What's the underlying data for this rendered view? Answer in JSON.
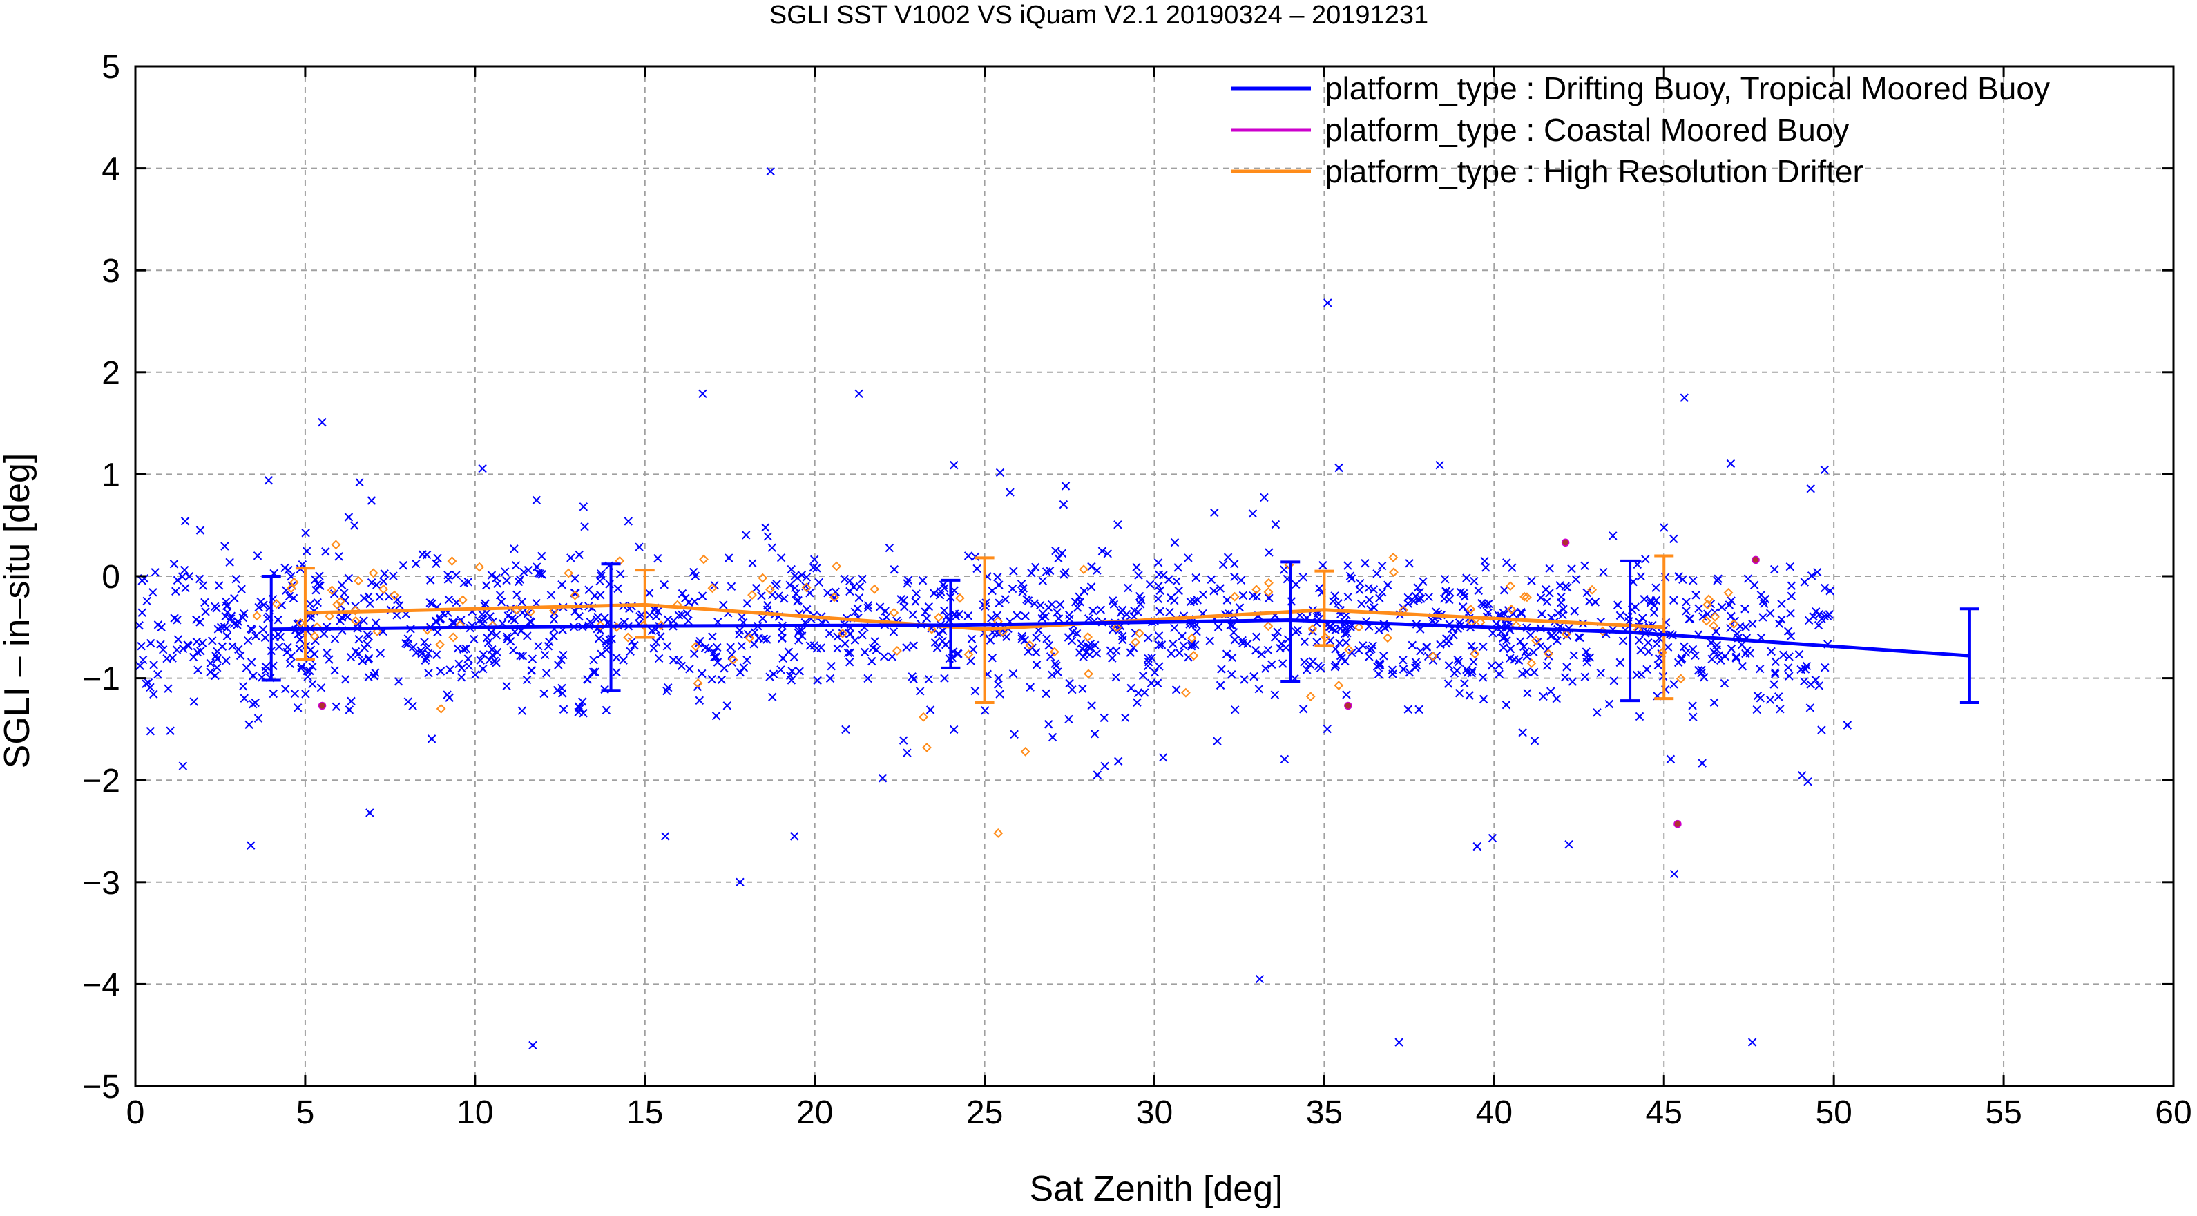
{
  "chart_data": {
    "type": "scatter",
    "title": "SGLI SST V1002 VS iQuam V2.1 20190324 – 20191231",
    "xlabel": "Sat Zenith [deg]",
    "ylabel": "SGLI – in–situ [deg]",
    "xlim": [
      0,
      60
    ],
    "ylim": [
      -5,
      5
    ],
    "xticks": [
      0,
      5,
      10,
      15,
      20,
      25,
      30,
      35,
      40,
      45,
      50,
      55,
      60
    ],
    "yticks": [
      -5,
      -4,
      -3,
      -2,
      -1,
      0,
      1,
      2,
      3,
      4,
      5
    ],
    "xtick_labels": [
      "0",
      "5",
      "10",
      "15",
      "20",
      "25",
      "30",
      "35",
      "40",
      "45",
      "50",
      "55",
      "60"
    ],
    "ytick_labels": [
      "−5",
      "−4",
      "−3",
      "−2",
      "−1",
      "0",
      "1",
      "2",
      "3",
      "4",
      "5"
    ],
    "grid": true,
    "legend_position": "top-right",
    "series": [
      {
        "name": "platform_type : Drifting Buoy, Tropical Moored Buoy",
        "color": "#0000ff",
        "marker": "cross",
        "mean_line": {
          "x": [
            4,
            14,
            24,
            34,
            44,
            54
          ],
          "y": [
            -0.52,
            -0.49,
            -0.48,
            -0.43,
            -0.55,
            -0.78
          ],
          "err_low": [
            -1.02,
            -1.12,
            -0.9,
            -1.03,
            -1.22,
            -1.24
          ],
          "err_high": [
            0.0,
            0.12,
            -0.04,
            0.14,
            0.15,
            -0.32
          ]
        },
        "outliers": [
          {
            "x": 18.7,
            "y": 3.97
          },
          {
            "x": 35.1,
            "y": 2.68
          },
          {
            "x": 16.7,
            "y": 1.79
          },
          {
            "x": 21.3,
            "y": 1.79
          },
          {
            "x": 45.6,
            "y": 1.75
          },
          {
            "x": 5.5,
            "y": 1.51
          },
          {
            "x": 24.1,
            "y": 1.09
          },
          {
            "x": 38.4,
            "y": 1.09
          },
          {
            "x": 6.6,
            "y": 0.92
          },
          {
            "x": 3.4,
            "y": -2.64
          },
          {
            "x": 17.8,
            "y": -3.0
          },
          {
            "x": 33.1,
            "y": -3.95
          },
          {
            "x": 11.7,
            "y": -4.6
          },
          {
            "x": 37.2,
            "y": -4.57
          },
          {
            "x": 47.6,
            "y": -4.57
          },
          {
            "x": 39.5,
            "y": -2.65
          },
          {
            "x": 42.2,
            "y": -2.63
          },
          {
            "x": 45.3,
            "y": -2.92
          },
          {
            "x": 19.4,
            "y": -2.55
          },
          {
            "x": 6.9,
            "y": -2.32
          },
          {
            "x": 15.6,
            "y": -2.55
          },
          {
            "x": 1.4,
            "y": -1.86
          },
          {
            "x": 22.0,
            "y": -1.98
          },
          {
            "x": 50.4,
            "y": -1.46
          }
        ]
      },
      {
        "name": "platform_type : Coastal Moored Buoy",
        "color": "#cc00cc",
        "marker": "dot",
        "points": [
          {
            "x": 5.5,
            "y": -1.27
          },
          {
            "x": 35.7,
            "y": -1.27
          },
          {
            "x": 45.4,
            "y": -2.43
          },
          {
            "x": 42.1,
            "y": 0.33
          },
          {
            "x": 47.7,
            "y": 0.16
          }
        ]
      },
      {
        "name": "platform_type : High Resolution Drifter",
        "color": "#ff8c1a",
        "marker": "diamond",
        "mean_line": {
          "x": [
            5,
            15,
            25,
            35,
            45
          ],
          "y": [
            -0.36,
            -0.28,
            -0.52,
            -0.33,
            -0.5
          ],
          "err_low": [
            -0.82,
            -0.6,
            -1.24,
            -0.68,
            -1.2
          ],
          "err_high": [
            0.08,
            0.06,
            0.18,
            0.05,
            0.2
          ]
        },
        "outliers": [
          {
            "x": 25.4,
            "y": -2.52
          },
          {
            "x": 23.3,
            "y": -1.68
          },
          {
            "x": 23.2,
            "y": -1.38
          },
          {
            "x": 26.2,
            "y": -1.72
          },
          {
            "x": 9.0,
            "y": -1.3
          },
          {
            "x": 14.5,
            "y": -0.6
          },
          {
            "x": 17.6,
            "y": -0.82
          },
          {
            "x": 34.6,
            "y": -1.18
          },
          {
            "x": 41.6,
            "y": -0.76
          }
        ]
      }
    ]
  }
}
